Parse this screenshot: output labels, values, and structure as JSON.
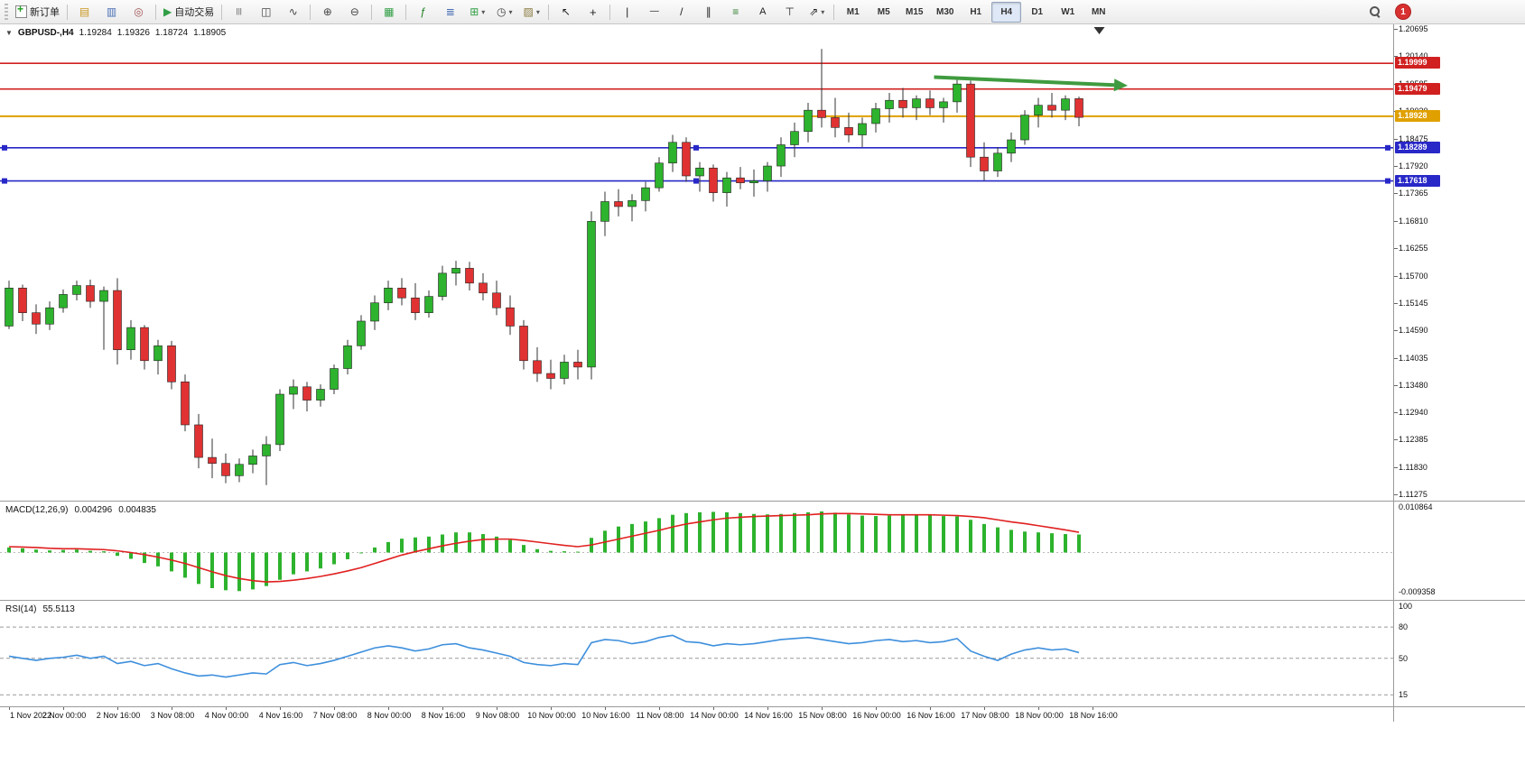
{
  "toolbar": {
    "groups": [
      {
        "items": [
          {
            "name": "new-order-button",
            "icon": "new-order-icon",
            "label": "新订单"
          }
        ]
      },
      {
        "items": [
          {
            "name": "market-watch-button",
            "icon": "market-watch-icon"
          },
          {
            "name": "data-window-button",
            "icon": "data-window-icon"
          },
          {
            "name": "navigator-button",
            "icon": "navigator-icon"
          }
        ]
      },
      {
        "items": [
          {
            "name": "autotrading-button",
            "icon": "autotrading-icon",
            "label": "自动交易"
          }
        ]
      },
      {
        "items": [
          {
            "name": "bar-chart-button",
            "icon": "bar-chart-icon"
          },
          {
            "name": "candlestick-button",
            "icon": "candlestick-icon"
          },
          {
            "name": "line-chart-button",
            "icon": "line-chart-icon"
          }
        ]
      },
      {
        "items": [
          {
            "name": "zoom-in-button",
            "icon": "zoom-in-icon"
          },
          {
            "name": "zoom-out-button",
            "icon": "zoom-out-icon"
          }
        ]
      },
      {
        "items": [
          {
            "name": "tile-windows-button",
            "icon": "tile-windows-icon"
          }
        ]
      },
      {
        "items": [
          {
            "name": "indicators-button",
            "icon": "indicators-icon"
          },
          {
            "name": "indicator-windows-button",
            "icon": "indicator-windows-icon"
          },
          {
            "name": "objects-button",
            "icon": "objects-icon",
            "dropdown": true
          },
          {
            "name": "periods-button",
            "icon": "period-icon",
            "dropdown": true
          },
          {
            "name": "templates-button",
            "icon": "template-icon",
            "dropdown": true
          }
        ]
      },
      {
        "items": [
          {
            "name": "cursor-button",
            "icon": "cursor-icon"
          },
          {
            "name": "crosshair-button",
            "icon": "crosshair-icon"
          }
        ]
      },
      {
        "items": [
          {
            "name": "vertical-line-button",
            "icon": "vertical-line-icon"
          },
          {
            "name": "horizontal-line-button",
            "icon": "horizontal-line-icon"
          },
          {
            "name": "trendline-button",
            "icon": "trendline-icon"
          },
          {
            "name": "channel-button",
            "icon": "channel-icon"
          },
          {
            "name": "fibonacci-button",
            "icon": "fibonacci-icon"
          },
          {
            "name": "text-button",
            "icon": "text-icon"
          },
          {
            "name": "label-button",
            "icon": "label-icon"
          },
          {
            "name": "arrows-button",
            "icon": "arrows-icon",
            "dropdown": true
          }
        ]
      }
    ],
    "timeframes": [
      "M1",
      "M5",
      "M15",
      "M30",
      "H1",
      "H4",
      "D1",
      "W1",
      "MN"
    ],
    "active_timeframe": "H4",
    "badge_count": "1"
  },
  "chart_data": [
    {
      "type": "candlestick",
      "symbol_period": "GBPUSD-,H4",
      "ohlc": {
        "open": "1.19284",
        "high": "1.19326",
        "low": "1.18724",
        "close": "1.18905"
      },
      "ylim": [
        1.112,
        1.2077
      ],
      "y_ticks": [
        "1.20695",
        "1.20140",
        "1.19585",
        "1.19030",
        "1.18475",
        "1.17920",
        "1.17365",
        "1.16810",
        "1.16255",
        "1.15700",
        "1.15145",
        "1.14590",
        "1.14035",
        "1.13480",
        "1.12940",
        "1.12385",
        "1.11830",
        "1.11275"
      ],
      "x_labels": [
        "1 Nov 2022",
        "2 Nov 00:00",
        "2 Nov 16:00",
        "3 Nov 08:00",
        "4 Nov 00:00",
        "4 Nov 16:00",
        "7 Nov 08:00",
        "8 Nov 00:00",
        "8 Nov 16:00",
        "9 Nov 08:00",
        "10 Nov 00:00",
        "10 Nov 16:00",
        "11 Nov 08:00",
        "14 Nov 00:00",
        "14 Nov 16:00",
        "15 Nov 08:00",
        "16 Nov 00:00",
        "16 Nov 16:00",
        "17 Nov 08:00",
        "18 Nov 00:00",
        "18 Nov 16:00"
      ],
      "candles": [
        [
          1.1468,
          1.156,
          1.1462,
          1.1545
        ],
        [
          1.1545,
          1.1552,
          1.1478,
          1.1495
        ],
        [
          1.1495,
          1.1512,
          1.1452,
          1.1472
        ],
        [
          1.1472,
          1.1518,
          1.146,
          1.1505
        ],
        [
          1.1505,
          1.1542,
          1.1495,
          1.1532
        ],
        [
          1.1532,
          1.156,
          1.152,
          1.155
        ],
        [
          1.155,
          1.1562,
          1.1505,
          1.1518
        ],
        [
          1.1518,
          1.1548,
          1.142,
          1.154
        ],
        [
          1.154,
          1.1565,
          1.139,
          1.142
        ],
        [
          1.142,
          1.148,
          1.14,
          1.1465
        ],
        [
          1.1465,
          1.147,
          1.138,
          1.1398
        ],
        [
          1.1398,
          1.144,
          1.137,
          1.1428
        ],
        [
          1.1428,
          1.1438,
          1.134,
          1.1355
        ],
        [
          1.1355,
          1.137,
          1.1255,
          1.1268
        ],
        [
          1.1268,
          1.129,
          1.118,
          1.1202
        ],
        [
          1.1202,
          1.124,
          1.116,
          1.119
        ],
        [
          1.119,
          1.121,
          1.115,
          1.1165
        ],
        [
          1.1165,
          1.12,
          1.1152,
          1.1188
        ],
        [
          1.1188,
          1.1218,
          1.117,
          1.1205
        ],
        [
          1.1205,
          1.1245,
          1.1146,
          1.1228
        ],
        [
          1.1228,
          1.134,
          1.1215,
          1.133
        ],
        [
          1.133,
          1.136,
          1.13,
          1.1345
        ],
        [
          1.1345,
          1.1355,
          1.1295,
          1.1318
        ],
        [
          1.1318,
          1.135,
          1.1305,
          1.134
        ],
        [
          1.134,
          1.139,
          1.133,
          1.1382
        ],
        [
          1.1382,
          1.144,
          1.137,
          1.1428
        ],
        [
          1.1428,
          1.149,
          1.142,
          1.1478
        ],
        [
          1.1478,
          1.153,
          1.146,
          1.1515
        ],
        [
          1.1515,
          1.156,
          1.15,
          1.1545
        ],
        [
          1.1545,
          1.1565,
          1.151,
          1.1525
        ],
        [
          1.1525,
          1.1555,
          1.148,
          1.1495
        ],
        [
          1.1495,
          1.154,
          1.1485,
          1.1528
        ],
        [
          1.1528,
          1.159,
          1.152,
          1.1575
        ],
        [
          1.1575,
          1.16,
          1.155,
          1.1585
        ],
        [
          1.1585,
          1.1598,
          1.154,
          1.1555
        ],
        [
          1.1555,
          1.1575,
          1.152,
          1.1535
        ],
        [
          1.1535,
          1.156,
          1.149,
          1.1505
        ],
        [
          1.1505,
          1.153,
          1.145,
          1.1468
        ],
        [
          1.1468,
          1.148,
          1.138,
          1.1398
        ],
        [
          1.1398,
          1.1425,
          1.1355,
          1.1372
        ],
        [
          1.1372,
          1.14,
          1.134,
          1.1362
        ],
        [
          1.1362,
          1.141,
          1.135,
          1.1395
        ],
        [
          1.1395,
          1.142,
          1.136,
          1.1385
        ],
        [
          1.1385,
          1.17,
          1.136,
          1.168
        ],
        [
          1.168,
          1.174,
          1.165,
          1.172
        ],
        [
          1.172,
          1.1745,
          1.169,
          1.171
        ],
        [
          1.171,
          1.1735,
          1.168,
          1.1722
        ],
        [
          1.1722,
          1.176,
          1.17,
          1.1748
        ],
        [
          1.1748,
          1.181,
          1.174,
          1.1798
        ],
        [
          1.1798,
          1.1855,
          1.178,
          1.184
        ],
        [
          1.184,
          1.185,
          1.176,
          1.1772
        ],
        [
          1.1772,
          1.18,
          1.174,
          1.1788
        ],
        [
          1.1788,
          1.1795,
          1.172,
          1.1738
        ],
        [
          1.1738,
          1.178,
          1.171,
          1.1768
        ],
        [
          1.1768,
          1.179,
          1.1745,
          1.1758
        ],
        [
          1.1758,
          1.1785,
          1.173,
          1.1762
        ],
        [
          1.1762,
          1.18,
          1.174,
          1.1792
        ],
        [
          1.1792,
          1.185,
          1.177,
          1.1835
        ],
        [
          1.1835,
          1.188,
          1.181,
          1.1862
        ],
        [
          1.1862,
          1.192,
          1.184,
          1.1905
        ],
        [
          1.1905,
          1.2029,
          1.187,
          1.189
        ],
        [
          1.189,
          1.193,
          1.185,
          1.187
        ],
        [
          1.187,
          1.19,
          1.184,
          1.1855
        ],
        [
          1.1855,
          1.189,
          1.183,
          1.1878
        ],
        [
          1.1878,
          1.192,
          1.186,
          1.1908
        ],
        [
          1.1908,
          1.194,
          1.188,
          1.1925
        ],
        [
          1.1925,
          1.195,
          1.189,
          1.191
        ],
        [
          1.191,
          1.1935,
          1.1885,
          1.1928
        ],
        [
          1.1928,
          1.1945,
          1.1895,
          1.191
        ],
        [
          1.191,
          1.193,
          1.188,
          1.1922
        ],
        [
          1.1922,
          1.1968,
          1.19,
          1.1958
        ],
        [
          1.1958,
          1.1965,
          1.179,
          1.181
        ],
        [
          1.181,
          1.184,
          1.1762,
          1.1782
        ],
        [
          1.1782,
          1.183,
          1.177,
          1.1818
        ],
        [
          1.1818,
          1.186,
          1.18,
          1.1845
        ],
        [
          1.1845,
          1.1905,
          1.1835,
          1.1895
        ],
        [
          1.1895,
          1.193,
          1.187,
          1.1915
        ],
        [
          1.1915,
          1.194,
          1.189,
          1.1905
        ],
        [
          1.1905,
          1.1935,
          1.1885,
          1.1928
        ],
        [
          1.19284,
          1.19326,
          1.18724,
          1.18905
        ]
      ],
      "colors": {
        "bull": "#2db32d",
        "bear": "#e03232",
        "wick": "#333333",
        "border": "#222222"
      },
      "hlines": [
        {
          "price": 1.19999,
          "label": "1.19999",
          "color": "#d02020",
          "width": 1.6
        },
        {
          "price": 1.19479,
          "label": "1.19479",
          "color": "#d02020",
          "width": 1.6
        },
        {
          "price": 1.18928,
          "label": "1.18928",
          "color": "#e0a000",
          "width": 2
        },
        {
          "price": 1.18289,
          "label": "1.18289",
          "color": "#2828c8",
          "width": 1.6,
          "selected": true
        },
        {
          "price": 1.17618,
          "label": "1.17618",
          "color": "#2828c8",
          "width": 1.6,
          "selected": true
        }
      ],
      "arrow": {
        "from_index": 68.3,
        "from_price": 1.1972,
        "to_index": 81.6,
        "to_price": 1.1956,
        "color": "#3f9b3f"
      },
      "shift_marker_index": 80.5
    },
    {
      "type": "bar",
      "name": "MACD(12,26,9)",
      "value_main": "0.004296",
      "value_signal": "0.004835",
      "ylim": [
        -0.009358,
        0.010864
      ],
      "axis_labels": [
        "0.010864",
        "-0.009358"
      ],
      "color": "#2db32d",
      "signal_color": "#e02020",
      "values": [
        0.0012,
        0.001,
        0.0007,
        0.0005,
        0.0006,
        0.0007,
        0.0004,
        0.0003,
        -0.0008,
        -0.0015,
        -0.0025,
        -0.0033,
        -0.0045,
        -0.006,
        -0.0075,
        -0.0085,
        -0.009,
        -0.0092,
        -0.0088,
        -0.008,
        -0.0065,
        -0.0052,
        -0.0045,
        -0.0038,
        -0.0028,
        -0.0016,
        -0.0002,
        0.0012,
        0.0025,
        0.0033,
        0.0036,
        0.0038,
        0.0043,
        0.0048,
        0.0048,
        0.0044,
        0.0038,
        0.003,
        0.0018,
        0.0008,
        0.0004,
        0.0003,
        0.0002,
        0.0035,
        0.0052,
        0.0062,
        0.0068,
        0.0074,
        0.0082,
        0.009,
        0.0094,
        0.0096,
        0.0097,
        0.0096,
        0.0094,
        0.0092,
        0.0091,
        0.0092,
        0.0094,
        0.0096,
        0.0098,
        0.0095,
        0.0091,
        0.0088,
        0.0087,
        0.0088,
        0.0089,
        0.009,
        0.0089,
        0.0087,
        0.0086,
        0.0078,
        0.0068,
        0.006,
        0.0054,
        0.005,
        0.0048,
        0.0046,
        0.0044,
        0.004296
      ],
      "signal": [
        0.0014,
        0.0013,
        0.0012,
        0.001,
        0.0009,
        0.0009,
        0.0008,
        0.0007,
        0.0004,
        0.0,
        -0.0005,
        -0.0011,
        -0.0018,
        -0.0026,
        -0.0036,
        -0.0046,
        -0.0055,
        -0.0062,
        -0.0067,
        -0.007,
        -0.0069,
        -0.0066,
        -0.0062,
        -0.0057,
        -0.0051,
        -0.0044,
        -0.0036,
        -0.0026,
        -0.0016,
        -0.0006,
        0.0002,
        0.0009,
        0.0016,
        0.0022,
        0.0027,
        0.0031,
        0.0032,
        0.0032,
        0.0029,
        0.0025,
        0.0021,
        0.0017,
        0.0014,
        0.0018,
        0.0025,
        0.0032,
        0.0039,
        0.0046,
        0.0053,
        0.0061,
        0.0068,
        0.0073,
        0.0078,
        0.0082,
        0.0084,
        0.0086,
        0.0087,
        0.0088,
        0.0089,
        0.009,
        0.0092,
        0.0093,
        0.0093,
        0.0092,
        0.0091,
        0.009,
        0.009,
        0.009,
        0.009,
        0.0089,
        0.0088,
        0.0086,
        0.0083,
        0.0078,
        0.0073,
        0.0069,
        0.0064,
        0.0059,
        0.0054,
        0.004835
      ]
    },
    {
      "type": "line",
      "name": "RSI(14)",
      "value": "55.5113",
      "ylim": [
        10,
        100
      ],
      "axis_labels": [
        "100",
        "80",
        "50",
        "15"
      ],
      "levels": [
        80,
        50,
        15
      ],
      "color": "#3d8fdd",
      "values": [
        52,
        50,
        48,
        50,
        51,
        53,
        50,
        52,
        45,
        47,
        43,
        45,
        40,
        36,
        33,
        34,
        32,
        34,
        36,
        35,
        44,
        46,
        43,
        45,
        48,
        52,
        56,
        60,
        62,
        60,
        57,
        59,
        63,
        64,
        60,
        58,
        55,
        52,
        46,
        44,
        43,
        45,
        44,
        65,
        68,
        67,
        64,
        66,
        70,
        72,
        66,
        65,
        62,
        64,
        63,
        64,
        66,
        68,
        69,
        70,
        68,
        66,
        64,
        65,
        67,
        68,
        66,
        67,
        65,
        66,
        69,
        57,
        52,
        48,
        54,
        58,
        60,
        58,
        59,
        55.5
      ]
    }
  ]
}
